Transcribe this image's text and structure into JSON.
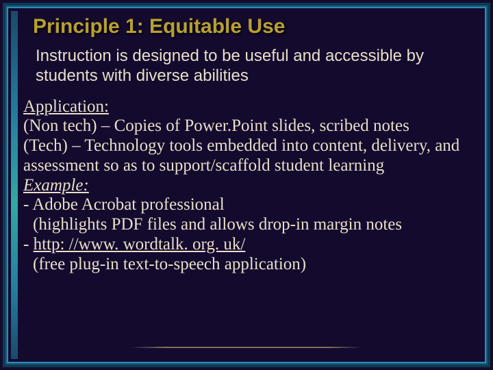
{
  "colors": {
    "background": "#140a2e",
    "title": "#b8a030",
    "text": "#e8dfc8",
    "frame_outer": "#0d3a52",
    "frame_mid": "#1a5a7a",
    "frame_inner": "#2a8aba"
  },
  "title": "Principle 1: Equitable Use",
  "intro": "Instruction is designed to be useful and accessible by students with diverse abilities",
  "body": {
    "application_label": "Application:",
    "nontech": "(Non tech) – Copies of Power.Point slides, scribed notes",
    "tech": "(Tech) – Technology tools embedded into content, delivery, and assessment so as to support/scaffold student learning",
    "example_label": "Example:",
    "ex1_line1": "- Adobe Acrobat professional",
    "ex1_line2": "(highlights PDF files and allows drop-in margin notes",
    "ex2_link_prefix": "- ",
    "ex2_link": "http: //www. wordtalk. org. uk/",
    "ex2_desc": "(free plug-in text-to-speech application)"
  }
}
